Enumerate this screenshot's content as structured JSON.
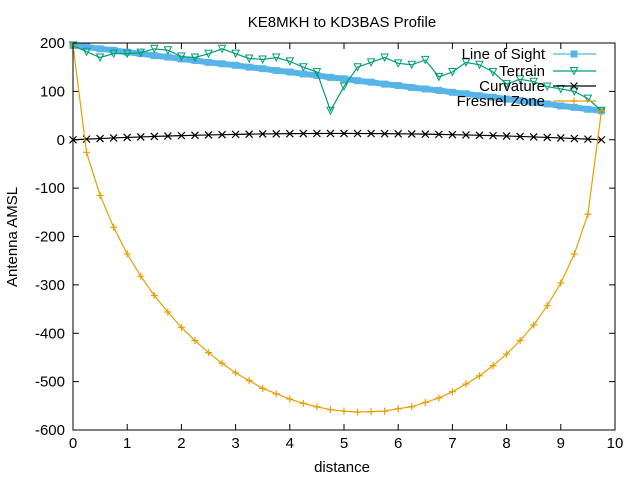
{
  "chart_data": {
    "type": "line",
    "title": "KE8MKH to KD3BAS Profile",
    "xlabel": "distance",
    "ylabel": "Antenna AMSL",
    "xlim": [
      0,
      10
    ],
    "ylim": [
      -600,
      200
    ],
    "xticks": [
      "0",
      "1",
      "2",
      "3",
      "4",
      "5",
      "6",
      "7",
      "8",
      "9",
      "10"
    ],
    "yticks": [
      "200",
      "100",
      "0",
      "-100",
      "-200",
      "-300",
      "-400",
      "-500",
      "-600"
    ],
    "grid": false,
    "legend_position": "top-right",
    "x": [
      0,
      0.25,
      0.5,
      0.75,
      1,
      1.25,
      1.5,
      1.75,
      2,
      2.25,
      2.5,
      2.75,
      3,
      3.25,
      3.5,
      3.75,
      4,
      4.25,
      4.5,
      4.75,
      5,
      5.25,
      5.5,
      5.75,
      6,
      6.25,
      6.5,
      6.75,
      7,
      7.25,
      7.5,
      7.75,
      8,
      8.25,
      8.5,
      8.75,
      9,
      9.25,
      9.5,
      9.75
    ],
    "series": [
      {
        "name": "Line of Sight",
        "color": "#56b4e9",
        "marker": "square",
        "values": [
          195,
          192,
          188,
          185,
          181,
          178,
          174,
          171,
          167,
          164,
          160,
          157,
          154,
          150,
          147,
          143,
          140,
          136,
          133,
          129,
          126,
          122,
          119,
          115,
          112,
          108,
          105,
          102,
          98,
          95,
          91,
          88,
          84,
          81,
          77,
          74,
          70,
          67,
          63,
          60
        ]
      },
      {
        "name": "Terrain",
        "color": "#009e73",
        "marker": "triangle-down",
        "values": [
          195,
          182,
          170,
          178,
          178,
          180,
          188,
          185,
          172,
          170,
          178,
          188,
          178,
          168,
          166,
          170,
          162,
          150,
          140,
          60,
          110,
          150,
          160,
          170,
          158,
          155,
          165,
          130,
          140,
          160,
          155,
          140,
          115,
          125,
          120,
          110,
          105,
          100,
          85,
          60
        ]
      },
      {
        "name": "Curvature",
        "color": "#000000",
        "marker": "x",
        "values": [
          0,
          1.3,
          2.5,
          3.7,
          4.8,
          5.8,
          6.8,
          7.7,
          8.5,
          9.2,
          9.9,
          10.5,
          11.1,
          11.6,
          12,
          12.3,
          12.6,
          12.8,
          12.9,
          13,
          13,
          12.9,
          12.8,
          12.6,
          12.3,
          12,
          11.6,
          11.1,
          10.5,
          9.9,
          9.2,
          8.5,
          7.7,
          6.8,
          5.8,
          4.8,
          3.7,
          2.5,
          1.3,
          0
        ]
      },
      {
        "name": "Fresnel Zone",
        "color": "#e69f00",
        "marker": "plus",
        "values": [
          195,
          -26,
          -115,
          -181,
          -236,
          -282,
          -322,
          -356,
          -388,
          -415,
          -440,
          -462,
          -482,
          -498,
          -514,
          -525,
          -536,
          -545,
          -552,
          -558,
          -561,
          -563,
          -562,
          -561,
          -556,
          -552,
          -543,
          -534,
          -521,
          -505,
          -488,
          -467,
          -443,
          -415,
          -383,
          -343,
          -296,
          -236,
          -154,
          60
        ]
      }
    ]
  }
}
